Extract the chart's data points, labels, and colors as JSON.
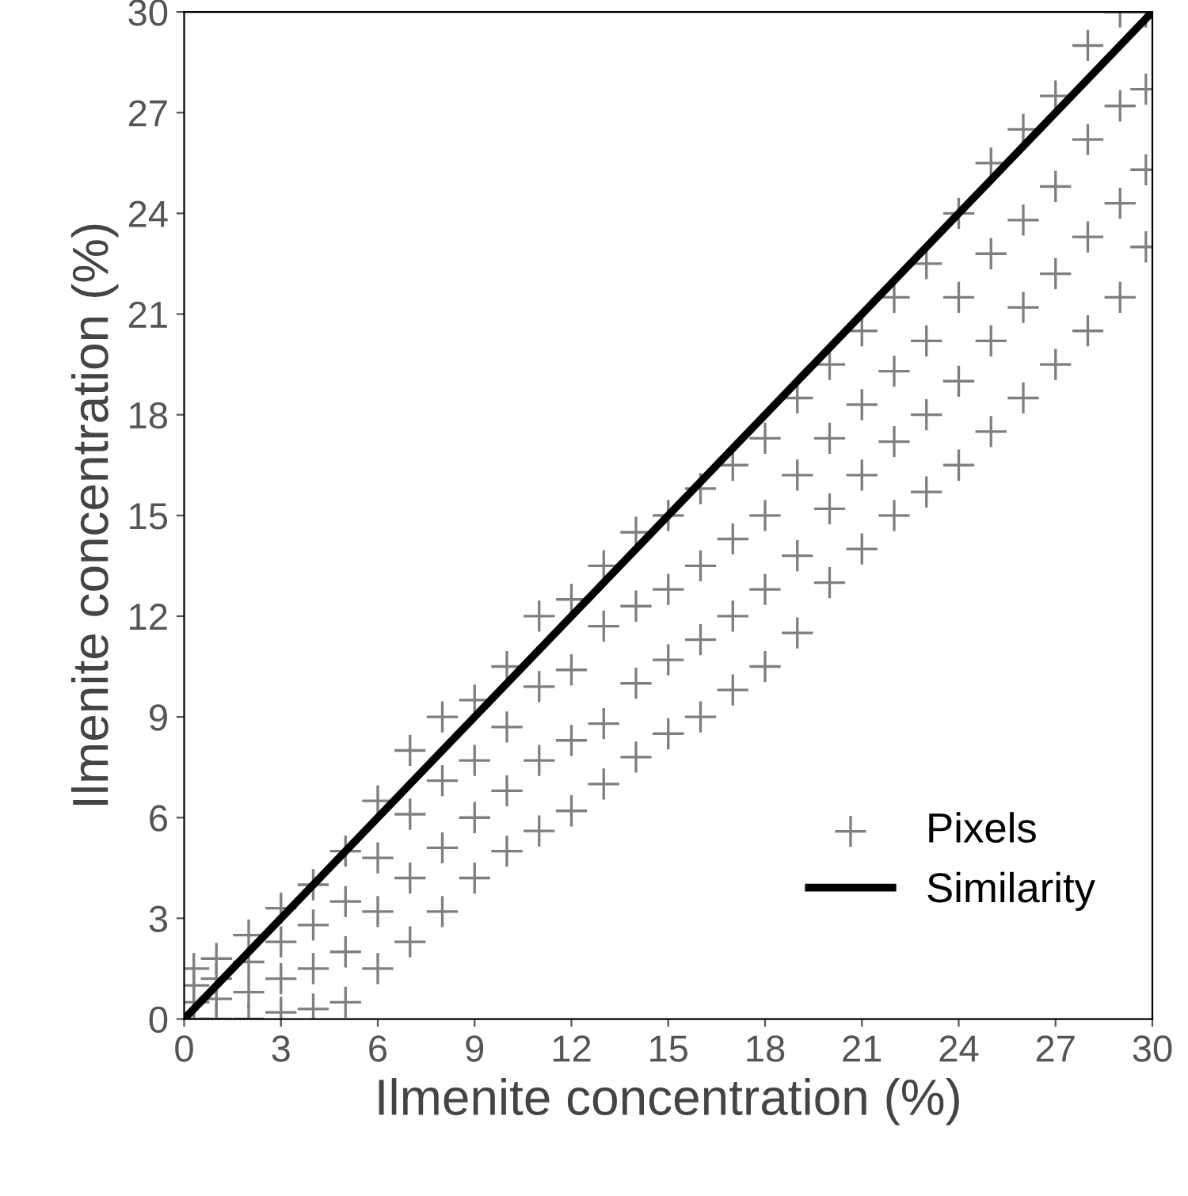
{
  "chart_data": {
    "type": "scatter",
    "xlabel": "Ilmenite concentration (%)",
    "ylabel": "Ilmenite concentration (%)",
    "xlim": [
      0,
      30
    ],
    "ylim": [
      0,
      30
    ],
    "xticks": [
      0,
      3,
      6,
      9,
      12,
      15,
      18,
      21,
      24,
      27,
      30
    ],
    "yticks": [
      0,
      3,
      6,
      9,
      12,
      15,
      18,
      21,
      24,
      27,
      30
    ],
    "grid": false,
    "legend": "bottom right",
    "series": [
      {
        "name": "Pixels",
        "marker": "cross",
        "color": "#7f7f7f",
        "x": [
          0.3,
          0.3,
          0.3,
          0.3,
          1,
          1,
          1,
          1,
          2,
          2,
          2,
          2,
          3,
          3,
          3,
          3,
          4,
          4,
          4,
          4,
          5,
          5,
          5,
          5,
          6,
          6,
          6,
          6,
          7,
          7,
          7,
          7,
          8,
          8,
          8,
          8,
          9,
          9,
          9,
          9,
          10,
          10,
          10,
          10,
          11,
          11,
          11,
          11,
          12,
          12,
          12,
          12,
          13,
          13,
          13,
          13,
          14,
          14,
          14,
          14,
          15,
          15,
          15,
          15,
          16,
          16,
          16,
          16,
          17,
          17,
          17,
          17,
          18,
          18,
          18,
          18,
          19,
          19,
          19,
          19,
          20,
          20,
          20,
          20,
          21,
          21,
          21,
          21,
          22,
          22,
          22,
          22,
          23,
          23,
          23,
          23,
          24,
          24,
          24,
          24,
          25,
          25,
          25,
          25,
          26,
          26,
          26,
          26,
          27,
          27,
          27,
          27,
          28,
          28,
          28,
          28,
          29,
          29,
          29,
          29,
          29.8,
          29.8,
          29.8,
          29.8
        ],
        "values": [
          0,
          0.5,
          1,
          1.5,
          0,
          0.6,
          1.2,
          1.8,
          0,
          0.8,
          1.7,
          2.5,
          0.2,
          1.2,
          2.3,
          3.3,
          0.3,
          1.5,
          2.8,
          4,
          0.5,
          2,
          3.5,
          5,
          1.5,
          3.2,
          4.8,
          6.5,
          2.3,
          4.2,
          6.1,
          8,
          3.2,
          5.1,
          7.1,
          9,
          4.2,
          6,
          7.7,
          9.5,
          5,
          6.8,
          8.7,
          10.5,
          5.6,
          7.7,
          9.9,
          12,
          6.2,
          8.3,
          10.4,
          12.5,
          7,
          8.8,
          11.7,
          13.5,
          7.8,
          10,
          12.3,
          14.5,
          8.5,
          10.7,
          12.8,
          15,
          9,
          11.3,
          13.5,
          15.8,
          9.8,
          12,
          14.3,
          16.5,
          10.5,
          12.8,
          15,
          17.3,
          11.5,
          13.8,
          16.2,
          18.5,
          13,
          15.2,
          17.3,
          19.5,
          14,
          16.2,
          18.3,
          20.5,
          15,
          17.2,
          19.3,
          21.5,
          15.7,
          18,
          20.2,
          22.5,
          16.5,
          19,
          21.5,
          24,
          17.5,
          20.2,
          22.8,
          25.5,
          18.5,
          21.2,
          23.8,
          26.5,
          19.5,
          22.2,
          24.8,
          27.5,
          20.5,
          23.3,
          26.2,
          29,
          21.5,
          24.3,
          27.2,
          30,
          23,
          25.3,
          27.7,
          30
        ]
      },
      {
        "name": "Similarity",
        "type": "line",
        "color": "#000000",
        "x": [
          0,
          30
        ],
        "values": [
          0,
          30
        ],
        "line_style": "solid"
      }
    ]
  }
}
